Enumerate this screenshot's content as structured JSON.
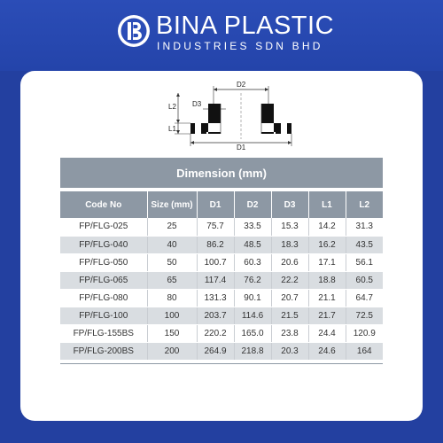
{
  "brand": {
    "name": "BINA PLASTIC",
    "subtitle": "INDUSTRIES SDN BHD",
    "logo_icon": "bp-logo-icon",
    "colors": {
      "background": "#2340a0",
      "header": "#2b4db7",
      "table_header": "#8d98a4",
      "row_alt": "#d9dde1"
    }
  },
  "diagram": {
    "labels": {
      "d1": "D1",
      "d2": "D2",
      "d3": "D3",
      "l1": "L1",
      "l2": "L2"
    }
  },
  "table": {
    "title": "Dimension (mm)",
    "columns": [
      "Code No",
      "Size (mm)",
      "D1",
      "D2",
      "D3",
      "L1",
      "L2"
    ],
    "rows": [
      [
        "FP/FLG-025",
        "25",
        "75.7",
        "33.5",
        "15.3",
        "14.2",
        "31.3"
      ],
      [
        "FP/FLG-040",
        "40",
        "86.2",
        "48.5",
        "18.3",
        "16.2",
        "43.5"
      ],
      [
        "FP/FLG-050",
        "50",
        "100.7",
        "60.3",
        "20.6",
        "17.1",
        "56.1"
      ],
      [
        "FP/FLG-065",
        "65",
        "117.4",
        "76.2",
        "22.2",
        "18.8",
        "60.5"
      ],
      [
        "FP/FLG-080",
        "80",
        "131.3",
        "90.1",
        "20.7",
        "21.1",
        "64.7"
      ],
      [
        "FP/FLG-100",
        "100",
        "203.7",
        "114.6",
        "21.5",
        "21.7",
        "72.5"
      ],
      [
        "FP/FLG-155BS",
        "150",
        "220.2",
        "165.0",
        "23.8",
        "24.4",
        "120.9"
      ],
      [
        "FP/FLG-200BS",
        "200",
        "264.9",
        "218.8",
        "20.3",
        "24.6",
        "164"
      ]
    ]
  }
}
